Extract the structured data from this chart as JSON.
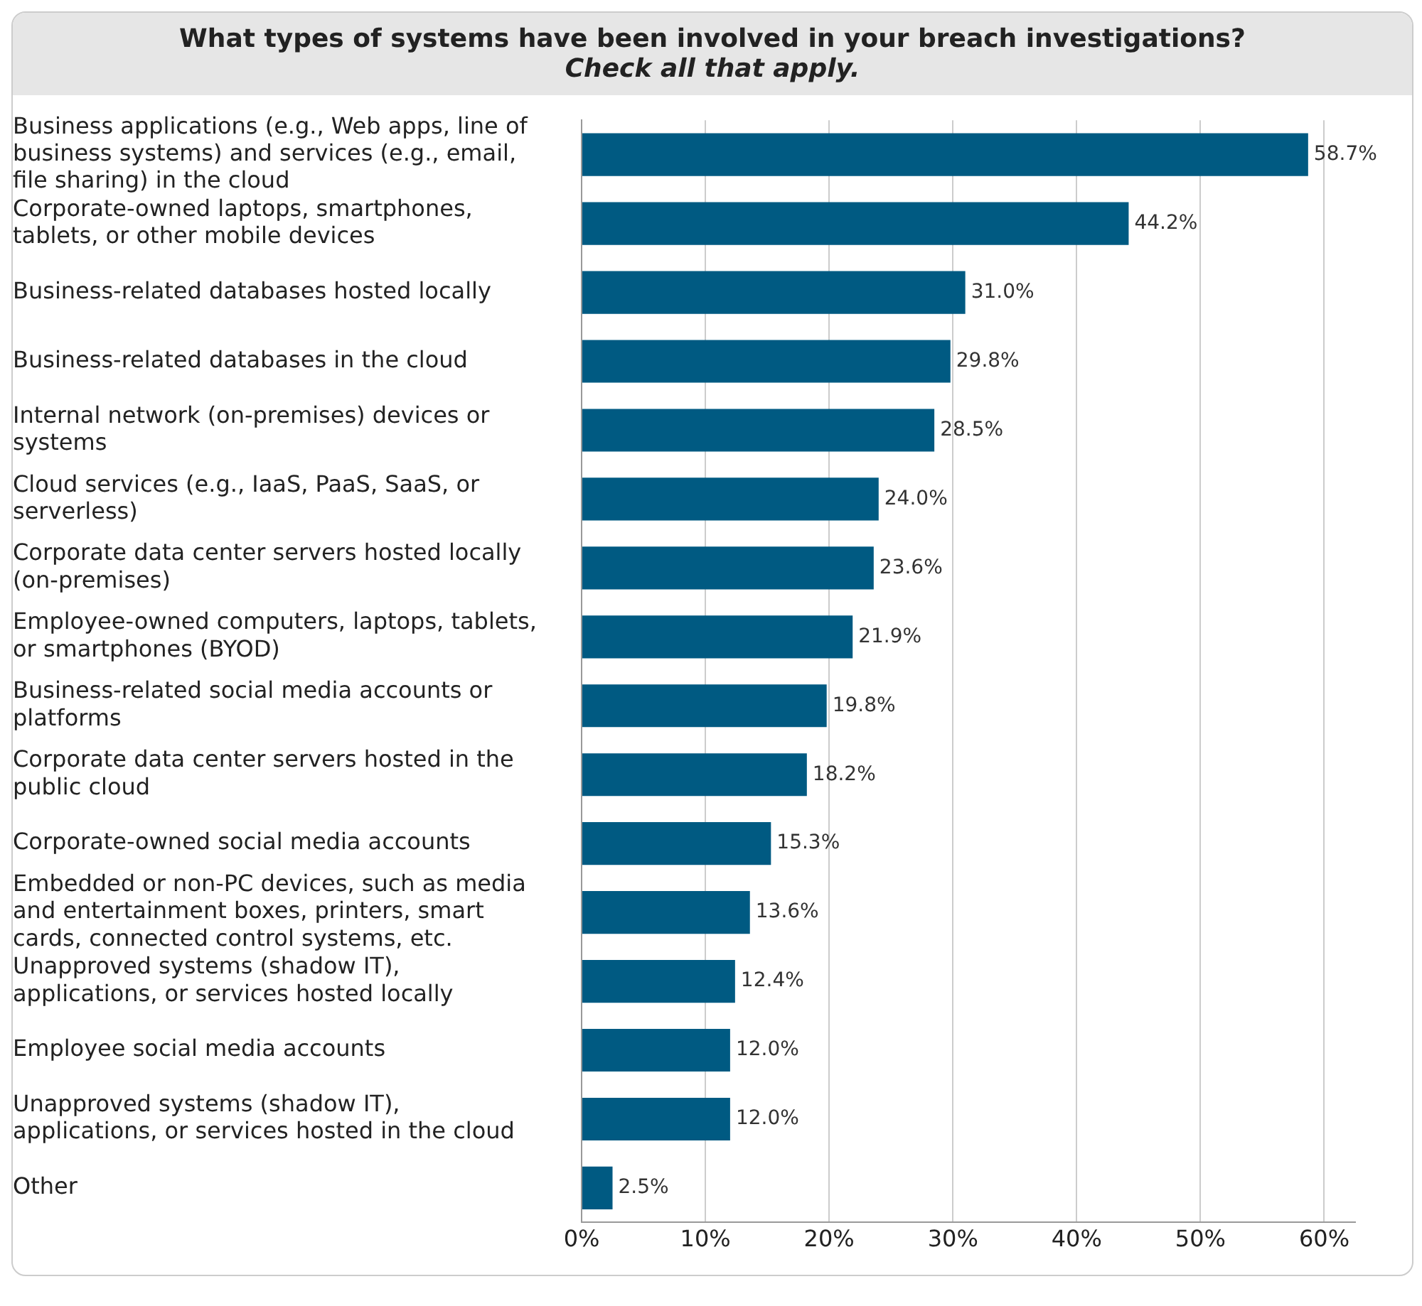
{
  "chart_data": {
    "type": "bar",
    "orientation": "horizontal",
    "title": "What types of systems have been involved in your breach investigations?",
    "subtitle": "Check all that apply.",
    "categories": [
      "Business applications (e.g., Web apps, line of business systems) and services (e.g., email, file sharing) in the cloud",
      "Corporate-owned laptops, smartphones, tablets, or other mobile devices",
      "Business-related databases hosted locally",
      "Business-related databases in the cloud",
      "Internal network (on-premises) devices or systems",
      "Cloud services (e.g., IaaS, PaaS, SaaS, or serverless)",
      "Corporate data center servers hosted locally (on-premises)",
      "Employee-owned computers, laptops, tablets, or smartphones (BYOD)",
      "Business-related social media accounts or platforms",
      "Corporate data center servers hosted in the public cloud",
      "Corporate-owned social media accounts",
      "Embedded or non-PC devices, such as media and entertainment boxes, printers, smart cards, connected control systems, etc.",
      "Unapproved systems (shadow IT), applications, or services hosted locally",
      "Employee social media accounts",
      "Unapproved systems (shadow IT), applications, or services hosted in the cloud",
      "Other"
    ],
    "values": [
      58.7,
      44.2,
      31.0,
      29.8,
      28.5,
      24.0,
      23.6,
      21.9,
      19.8,
      18.2,
      15.3,
      13.6,
      12.4,
      12.0,
      12.0,
      2.5
    ],
    "value_labels": [
      "58.7%",
      "44.2%",
      "31.0%",
      "29.8%",
      "28.5%",
      "24.0%",
      "23.6%",
      "21.9%",
      "19.8%",
      "18.2%",
      "15.3%",
      "13.6%",
      "12.4%",
      "12.0%",
      "12.0%",
      "2.5%"
    ],
    "color": "#005a82",
    "xlim": [
      0,
      62.5
    ],
    "xticks": [
      {
        "value": 0,
        "label": "0%"
      },
      {
        "value": 10,
        "label": "10%"
      },
      {
        "value": 20,
        "label": "20%"
      },
      {
        "value": 30,
        "label": "30%"
      },
      {
        "value": 40,
        "label": "40%"
      },
      {
        "value": 50,
        "label": "50%"
      },
      {
        "value": 60,
        "label": "60%"
      }
    ],
    "grid": "x",
    "legend": false
  }
}
